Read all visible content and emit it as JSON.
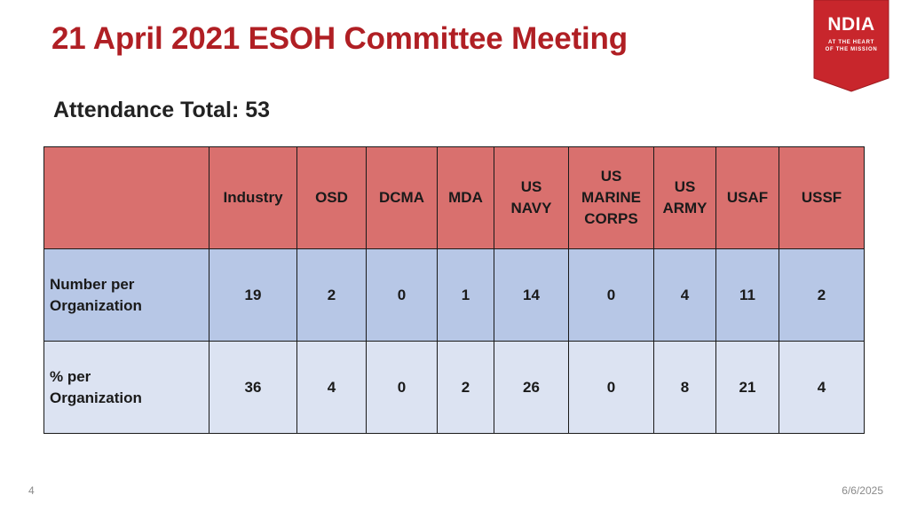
{
  "title": "21 April 2021 ESOH Committee Meeting",
  "subtitle": "Attendance Total: 53",
  "logo": {
    "name": "NDIA",
    "tagline_line1": "AT THE HEART",
    "tagline_line2": "OF THE MISSION",
    "color": "#c8262c"
  },
  "table": {
    "columns": [
      "Industry",
      "OSD",
      "DCMA",
      "MDA",
      "US\nNAVY",
      "US\nMARINE\nCORPS",
      "US\nARMY",
      "USAF",
      "USSF"
    ],
    "rows": [
      {
        "label": "Number per\nOrganization",
        "values": [
          "19",
          "2",
          "0",
          "1",
          "14",
          "0",
          "4",
          "11",
          "2"
        ]
      },
      {
        "label": "% per\nOrganization",
        "values": [
          "36",
          "4",
          "0",
          "2",
          "26",
          "0",
          "8",
          "21",
          "4"
        ]
      }
    ],
    "colors": {
      "header": "#d9706e",
      "row1": "#b7c7e6",
      "row2": "#dce3f2"
    }
  },
  "footer": {
    "page_number": "4",
    "date": "6/6/2025"
  }
}
